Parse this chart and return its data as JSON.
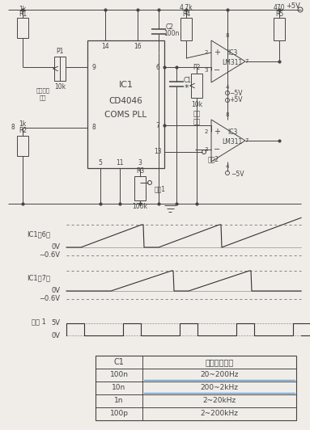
{
  "bg": "#f0ede8",
  "line_color": "#444444",
  "table": {
    "headers": [
      "C1",
      "频率变化范围"
    ],
    "rows": [
      [
        "100n",
        "20~200Hz"
      ],
      [
        "10n",
        "200~2kHz"
      ],
      [
        "1n",
        "2~20kHz"
      ],
      [
        "100p",
        "2~200kHz"
      ]
    ],
    "blue_rows": [
      0,
      1
    ]
  }
}
